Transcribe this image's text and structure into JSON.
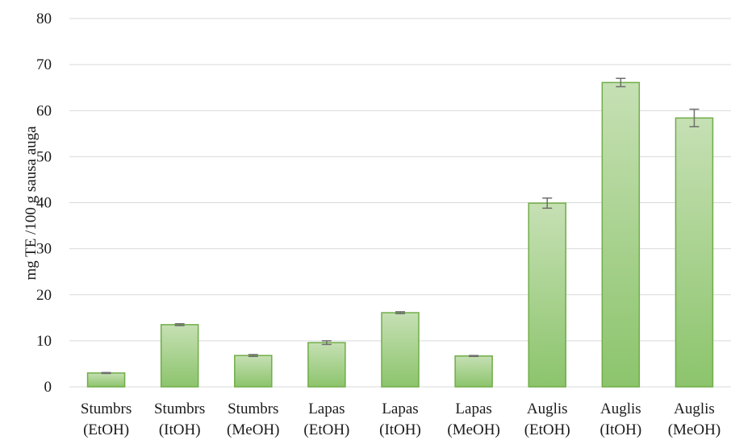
{
  "chart_data": {
    "type": "bar",
    "title": "",
    "xlabel": "",
    "ylabel": "mg TE /100 g sausa auga",
    "ylim": [
      0,
      80
    ],
    "yticks": [
      0,
      10,
      20,
      30,
      40,
      50,
      60,
      70,
      80
    ],
    "grid": true,
    "legend": "none",
    "categories": [
      [
        "Stumbrs",
        "(EtOH)"
      ],
      [
        "Stumbrs",
        "(ItOH)"
      ],
      [
        "Stumbrs",
        "(MeOH)"
      ],
      [
        "Lapas",
        "(EtOH)"
      ],
      [
        "Lapas",
        "(ItOH)"
      ],
      [
        "Lapas",
        "(MeOH)"
      ],
      [
        "Auglis",
        "(EtOH)"
      ],
      [
        "Auglis",
        "(ItOH)"
      ],
      [
        "Auglis",
        "(MeOH)"
      ]
    ],
    "series": [
      {
        "values": [
          3.0,
          13.5,
          6.8,
          9.6,
          16.1,
          6.7,
          39.9,
          66.1,
          58.4
        ],
        "errors": [
          0.1,
          0.2,
          0.2,
          0.4,
          0.2,
          0.1,
          1.1,
          0.9,
          1.9
        ]
      }
    ],
    "colors": {
      "bar_top": "#c6e0b4",
      "bar_bottom": "#8cc46c",
      "bar_border": "#70ad47",
      "error_bar": "#6e6e6e",
      "gridline": "#d9d9d9"
    }
  }
}
